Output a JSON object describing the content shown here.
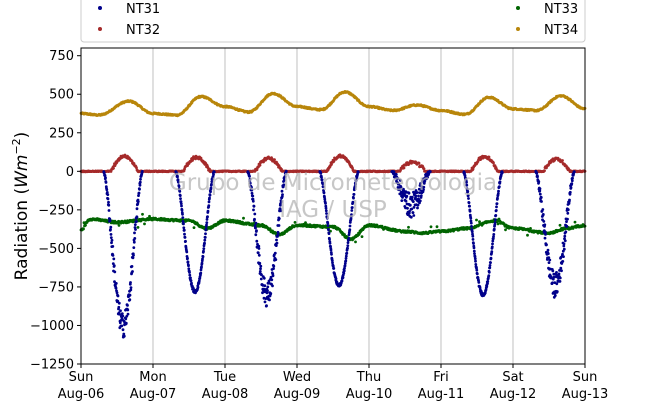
{
  "chart_data": {
    "type": "scatter",
    "title": "",
    "xlabel": "",
    "ylabel": "Radiation (W m^{-2})",
    "ylabel_parts": {
      "text": "Radiation (",
      "unit_w": "W",
      "unit_m": "m",
      "unit_exp": "−2",
      "close": ")"
    },
    "ylim": [
      -1250,
      800
    ],
    "yticks": [
      {
        "value": 750,
        "label": "750"
      },
      {
        "value": 500,
        "label": "500"
      },
      {
        "value": 250,
        "label": "250"
      },
      {
        "value": 0,
        "label": "0"
      },
      {
        "value": -250,
        "label": "−250"
      },
      {
        "value": -500,
        "label": "−500"
      },
      {
        "value": -750,
        "label": "−750"
      },
      {
        "value": -1000,
        "label": "−1000"
      },
      {
        "value": -1250,
        "label": "−1250"
      }
    ],
    "xlim": [
      "2017-08-06",
      "2017-08-13"
    ],
    "xticks": [
      {
        "day": "Sun",
        "date": "Aug-06"
      },
      {
        "day": "Mon",
        "date": "Aug-07"
      },
      {
        "day": "Tue",
        "date": "Aug-08"
      },
      {
        "day": "Wed",
        "date": "Aug-09"
      },
      {
        "day": "Thu",
        "date": "Aug-10"
      },
      {
        "day": "Fri",
        "date": "Aug-11"
      },
      {
        "day": "Sat",
        "date": "Aug-12"
      },
      {
        "day": "Sun",
        "date": "Aug-13"
      }
    ],
    "grid": "vertical",
    "legend_position": "top",
    "watermark": [
      "Grupo de Micrometeorologia",
      "IAG / USP"
    ],
    "series": [
      {
        "name": "NT31",
        "color": "#00008b",
        "daily_min": [
          -1000,
          -780,
          -800,
          -740,
          -220,
          -800,
          -740
        ],
        "midday_hour": 14
      },
      {
        "name": "NT32",
        "color": "#a52a2a",
        "baseline": 0,
        "daily_peak": [
          100,
          90,
          85,
          100,
          60,
          95,
          80
        ]
      },
      {
        "name": "NT33",
        "color": "#006400",
        "points": [
          [
            "2017-08-06 00:00",
            -380
          ],
          [
            "2017-08-06 03:00",
            -310
          ],
          [
            "2017-08-06 12:00",
            -330
          ],
          [
            "2017-08-07 00:00",
            -310
          ],
          [
            "2017-08-07 12:00",
            -320
          ],
          [
            "2017-08-07 18:00",
            -370
          ],
          [
            "2017-08-08 00:00",
            -320
          ],
          [
            "2017-08-08 12:00",
            -350
          ],
          [
            "2017-08-08 18:00",
            -410
          ],
          [
            "2017-08-09 00:00",
            -350
          ],
          [
            "2017-08-09 12:00",
            -360
          ],
          [
            "2017-08-09 18:00",
            -440
          ],
          [
            "2017-08-10 00:00",
            -350
          ],
          [
            "2017-08-10 12:00",
            -390
          ],
          [
            "2017-08-10 18:00",
            -400
          ],
          [
            "2017-08-11 00:00",
            -390
          ],
          [
            "2017-08-11 09:00",
            -370
          ],
          [
            "2017-08-11 18:00",
            -320
          ],
          [
            "2017-08-12 00:00",
            -370
          ],
          [
            "2017-08-12 12:00",
            -400
          ],
          [
            "2017-08-12 18:00",
            -370
          ],
          [
            "2017-08-13 00:00",
            -350
          ]
        ]
      },
      {
        "name": "NT34",
        "color": "#b8860b",
        "points": [
          [
            "2017-08-06 00:00",
            375
          ],
          [
            "2017-08-06 06:00",
            365
          ],
          [
            "2017-08-06 16:00",
            455
          ],
          [
            "2017-08-07 00:00",
            375
          ],
          [
            "2017-08-07 08:00",
            365
          ],
          [
            "2017-08-07 16:00",
            485
          ],
          [
            "2017-08-08 00:00",
            420
          ],
          [
            "2017-08-08 08:00",
            385
          ],
          [
            "2017-08-08 16:00",
            505
          ],
          [
            "2017-08-09 00:00",
            420
          ],
          [
            "2017-08-09 08:00",
            400
          ],
          [
            "2017-08-09 16:00",
            515
          ],
          [
            "2017-08-10 00:00",
            420
          ],
          [
            "2017-08-10 08:00",
            395
          ],
          [
            "2017-08-10 16:00",
            430
          ],
          [
            "2017-08-11 00:00",
            395
          ],
          [
            "2017-08-11 08:00",
            370
          ],
          [
            "2017-08-11 16:00",
            480
          ],
          [
            "2017-08-12 00:00",
            405
          ],
          [
            "2017-08-12 08:00",
            395
          ],
          [
            "2017-08-12 16:00",
            490
          ],
          [
            "2017-08-13 00:00",
            405
          ]
        ]
      }
    ]
  }
}
